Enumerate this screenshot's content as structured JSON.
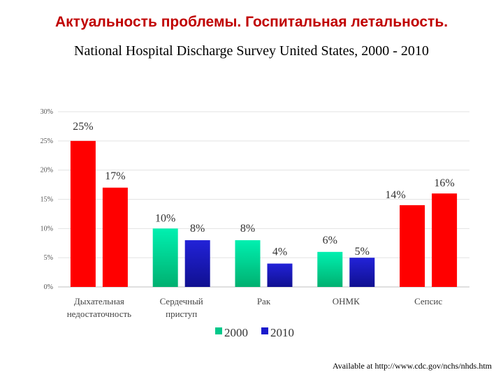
{
  "header": {
    "title": "Актуальность проблемы. Госпитальная летальность.",
    "subtitle": "National Hospital Discharge Survey United States, 2000 - 2010"
  },
  "footer": {
    "source": "Available at http://www.cdc.gov/nchs/nhds.htm"
  },
  "chart_data": {
    "type": "bar",
    "categories": [
      [
        "Дыхательная",
        "недостаточность"
      ],
      [
        "Сердечный",
        "приступ"
      ],
      [
        "Рак"
      ],
      [
        "ОНМК"
      ],
      [
        "Сепсис"
      ]
    ],
    "series": [
      {
        "name": "2000",
        "values": [
          25,
          10,
          8,
          6,
          14
        ],
        "labels": [
          "25%",
          "10%",
          "8%",
          "6%",
          "14%"
        ]
      },
      {
        "name": "2010",
        "values": [
          17,
          8,
          4,
          5,
          16
        ],
        "labels": [
          "17%",
          "8%",
          "4%",
          "5%",
          "16%"
        ]
      }
    ],
    "yticks": [
      "0%",
      "5%",
      "10%",
      "15%",
      "20%",
      "25%",
      "30%"
    ],
    "ylim": [
      0,
      30
    ],
    "grid": true,
    "legend": "bottom",
    "colors": {
      "2000_normal": "#ff0000",
      "2000_highlight": "#00e0a0",
      "2010_normal": "#ff0000",
      "2010_highlight": "#1a1acc",
      "legend_2000": "#00c88a",
      "legend_2010": "#1a1acc"
    }
  }
}
